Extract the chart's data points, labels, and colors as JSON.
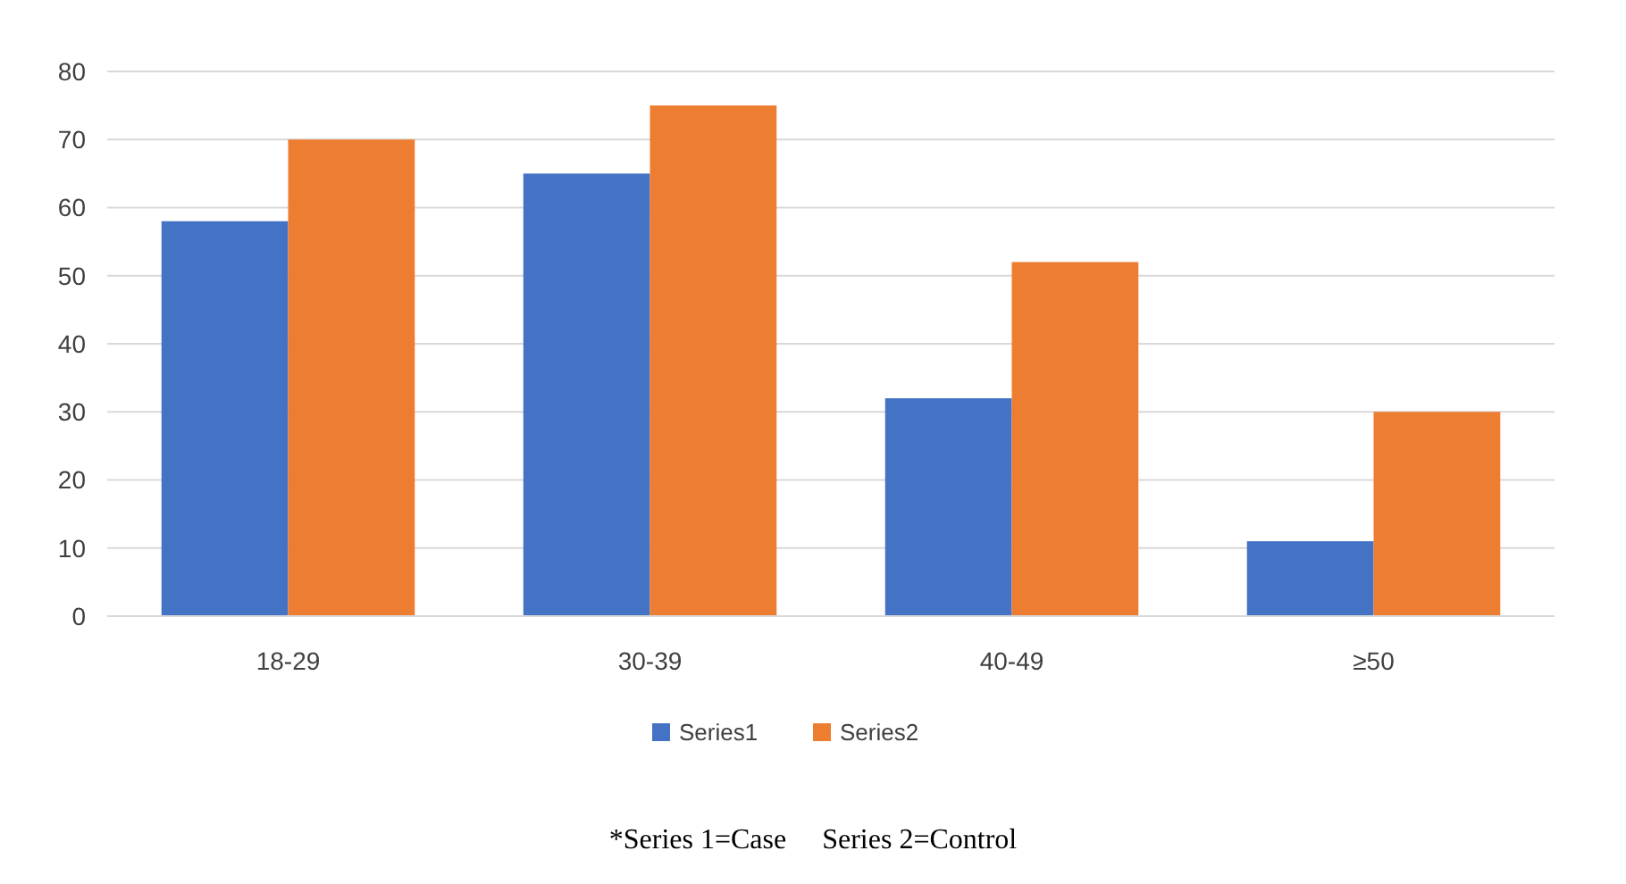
{
  "chart_data": {
    "type": "bar",
    "categories": [
      "18-29",
      "30-39",
      "40-49",
      "≥50"
    ],
    "series": [
      {
        "name": "Series1",
        "color": "#4472c4",
        "values": [
          58,
          65,
          32,
          11
        ]
      },
      {
        "name": "Series2",
        "color": "#ed7d31",
        "values": [
          70,
          75,
          52,
          30
        ]
      }
    ],
    "ylim": [
      0,
      80
    ],
    "yticks": [
      0,
      10,
      20,
      30,
      40,
      50,
      60,
      70,
      80
    ],
    "grid": "y",
    "legend": "bottom",
    "annotations": [
      "*Series 1=Case     Series 2=Control"
    ]
  }
}
